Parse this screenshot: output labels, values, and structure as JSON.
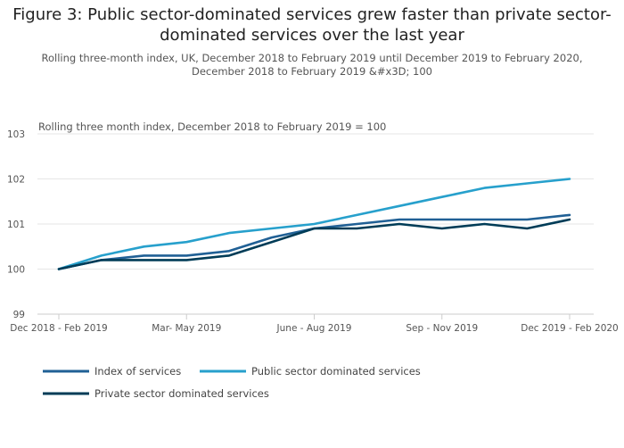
{
  "header": {
    "title_line1": "Figure 3: Public sector-dominated services grew faster than private sector-",
    "title_line2": "dominated services over the last year",
    "subtitle_line1": "Rolling three-month index, UK, December 2018 to February 2019 until December 2019 to February 2020,",
    "subtitle_line2": "December 2018 to February 2019 &#x3D; 100"
  },
  "chart_data": {
    "type": "line",
    "ylabel": "Rolling three month index, December 2018 to February 2019 = 100",
    "ylim": [
      99,
      103
    ],
    "yticks": [
      "99",
      "100",
      "101",
      "102",
      "103"
    ],
    "x_count": 13,
    "x_tick_labels": [
      {
        "index": 0,
        "label": "Dec 2018 - Feb 2019"
      },
      {
        "index": 3,
        "label": "Mar- May 2019"
      },
      {
        "index": 6,
        "label": "June - Aug 2019"
      },
      {
        "index": 9,
        "label": "Sep - Nov 2019"
      },
      {
        "index": 12,
        "label": "Dec 2019 - Feb 2020"
      }
    ],
    "grid": true,
    "legend_position": "bottom",
    "series": [
      {
        "name": "Index of services",
        "color": "#206095",
        "values": [
          100.0,
          100.2,
          100.3,
          100.3,
          100.4,
          100.7,
          100.9,
          101.0,
          101.1,
          101.1,
          101.1,
          101.1,
          101.2
        ]
      },
      {
        "name": "Public sector dominated services",
        "color": "#27a0cc",
        "values": [
          100.0,
          100.3,
          100.5,
          100.6,
          100.8,
          100.9,
          101.0,
          101.2,
          101.4,
          101.6,
          101.8,
          101.9,
          102.0
        ]
      },
      {
        "name": "Private sector dominated services",
        "color": "#003c57",
        "values": [
          100.0,
          100.2,
          100.2,
          100.2,
          100.3,
          100.6,
          100.9,
          100.9,
          101.0,
          100.9,
          101.0,
          100.9,
          101.1
        ]
      }
    ]
  }
}
